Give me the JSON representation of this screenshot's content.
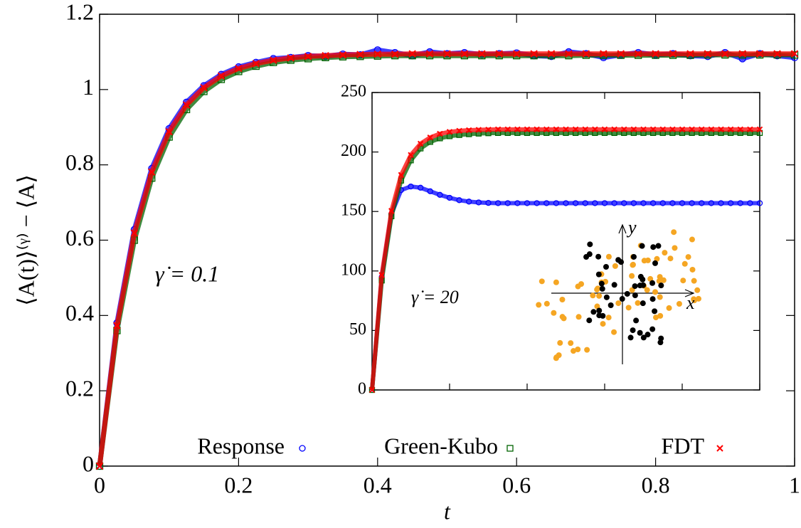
{
  "chart_data": [
    {
      "type": "scatter",
      "x_label": "t",
      "y_label": "⟨A(t)⟩⁽ᵞ⁾ − ⟨A⟩",
      "annotation": "γ̇ = 0.1",
      "x": [
        0,
        0.025,
        0.05,
        0.075,
        0.1,
        0.125,
        0.15,
        0.175,
        0.2,
        0.225,
        0.25,
        0.275,
        0.3,
        0.325,
        0.35,
        0.375,
        0.4,
        0.425,
        0.45,
        0.475,
        0.5,
        0.525,
        0.55,
        0.575,
        0.6,
        0.625,
        0.65,
        0.675,
        0.7,
        0.725,
        0.75,
        0.775,
        0.8,
        0.825,
        0.85,
        0.875,
        0.9,
        0.925,
        0.95,
        0.975,
        1
      ],
      "series": [
        {
          "name": "Response",
          "color": "#0000ff",
          "marker": "circle",
          "values": [
            0,
            0.38,
            0.628,
            0.79,
            0.896,
            0.966,
            1.01,
            1.04,
            1.06,
            1.072,
            1.082,
            1.085,
            1.09,
            1.088,
            1.094,
            1.092,
            1.105,
            1.098,
            1.09,
            1.1,
            1.095,
            1.098,
            1.093,
            1.095,
            1.097,
            1.09,
            1.088,
            1.1,
            1.095,
            1.085,
            1.092,
            1.098,
            1.092,
            1.095,
            1.09,
            1.088,
            1.098,
            1.082,
            1.095,
            1.09,
            1.085
          ]
        },
        {
          "name": "Green-Kubo",
          "color": "#006400",
          "marker": "square",
          "values": [
            0,
            0.36,
            0.6,
            0.765,
            0.874,
            0.947,
            0.995,
            1.027,
            1.048,
            1.062,
            1.072,
            1.078,
            1.082,
            1.085,
            1.087,
            1.088,
            1.089,
            1.09,
            1.09,
            1.09,
            1.09,
            1.09,
            1.09,
            1.09,
            1.09,
            1.09,
            1.09,
            1.09,
            1.091,
            1.091,
            1.091,
            1.091,
            1.091,
            1.091,
            1.091,
            1.092,
            1.092,
            1.092,
            1.092,
            1.092,
            1.092
          ]
        },
        {
          "name": "FDT",
          "color": "#ff0000",
          "marker": "cross",
          "values": [
            0,
            0.373,
            0.619,
            0.781,
            0.888,
            0.959,
            1.005,
            1.036,
            1.056,
            1.069,
            1.078,
            1.084,
            1.088,
            1.09,
            1.092,
            1.093,
            1.094,
            1.094,
            1.095,
            1.095,
            1.095,
            1.095,
            1.095,
            1.095,
            1.095,
            1.095,
            1.095,
            1.095,
            1.095,
            1.095,
            1.095,
            1.095,
            1.095,
            1.095,
            1.095,
            1.095,
            1.095,
            1.095,
            1.095,
            1.095,
            1.095
          ]
        }
      ],
      "xlim": [
        0,
        1
      ],
      "xticks": [
        0,
        0.2,
        0.4,
        0.6,
        0.8,
        1
      ],
      "ylim": [
        0,
        1.2
      ],
      "yticks": [
        0,
        0.2,
        0.4,
        0.6,
        0.8,
        1,
        1.2
      ],
      "legend": "bottom"
    },
    {
      "type": "scatter",
      "annotation": "γ̇ = 20",
      "inset_diagram": {
        "x_label": "x",
        "y_label": "y"
      },
      "x": [
        0,
        0.025,
        0.05,
        0.075,
        0.1,
        0.125,
        0.15,
        0.175,
        0.2,
        0.225,
        0.25,
        0.275,
        0.3,
        0.325,
        0.35,
        0.375,
        0.4,
        0.425,
        0.45,
        0.475,
        0.5,
        0.525,
        0.55,
        0.575,
        0.6,
        0.625,
        0.65,
        0.675,
        0.7,
        0.725,
        0.75,
        0.775,
        0.8,
        0.825,
        0.85,
        0.875,
        0.9,
        0.925,
        0.95,
        0.975,
        1
      ],
      "series": [
        {
          "color": "#0000ff",
          "marker": "circle",
          "values": [
            0,
            95,
            148,
            168,
            171,
            170,
            167,
            164,
            161.5,
            159.5,
            158.3,
            157.6,
            157.2,
            157,
            157,
            157,
            157,
            157,
            157,
            157,
            157,
            157,
            157,
            157,
            157,
            157,
            157,
            157,
            157,
            157,
            157,
            157,
            157,
            157,
            157,
            157,
            157,
            157,
            157,
            157,
            157
          ]
        },
        {
          "color": "#006400",
          "marker": "square",
          "values": [
            0,
            92,
            146,
            176,
            193,
            203,
            208.5,
            211.5,
            213.3,
            214.3,
            215,
            215.5,
            215.8,
            216,
            216,
            216,
            216,
            216,
            216,
            216,
            216,
            216,
            216,
            216,
            216,
            216,
            216,
            216,
            216,
            216,
            216,
            216,
            216,
            216,
            216,
            216,
            216,
            216,
            216,
            216,
            216
          ]
        },
        {
          "color": "#ff0000",
          "marker": "cross",
          "values": [
            0,
            96.6,
            150.5,
            180.7,
            197.5,
            207,
            212.2,
            215.3,
            216.9,
            217.8,
            218.3,
            218.6,
            218.8,
            219,
            219,
            219,
            219,
            219,
            219,
            219,
            219,
            219,
            219,
            219,
            219,
            219,
            219,
            219,
            219,
            219,
            219,
            219,
            219,
            219,
            219,
            219,
            219,
            219,
            219,
            219,
            219
          ]
        }
      ],
      "xlim": [
        0,
        1
      ],
      "xticks": [
        0,
        0.2,
        0.4,
        0.6,
        0.8,
        1
      ],
      "xtick_labels": false,
      "ylim": [
        0,
        250
      ],
      "yticks": [
        0,
        50,
        100,
        150,
        200,
        250
      ]
    }
  ]
}
